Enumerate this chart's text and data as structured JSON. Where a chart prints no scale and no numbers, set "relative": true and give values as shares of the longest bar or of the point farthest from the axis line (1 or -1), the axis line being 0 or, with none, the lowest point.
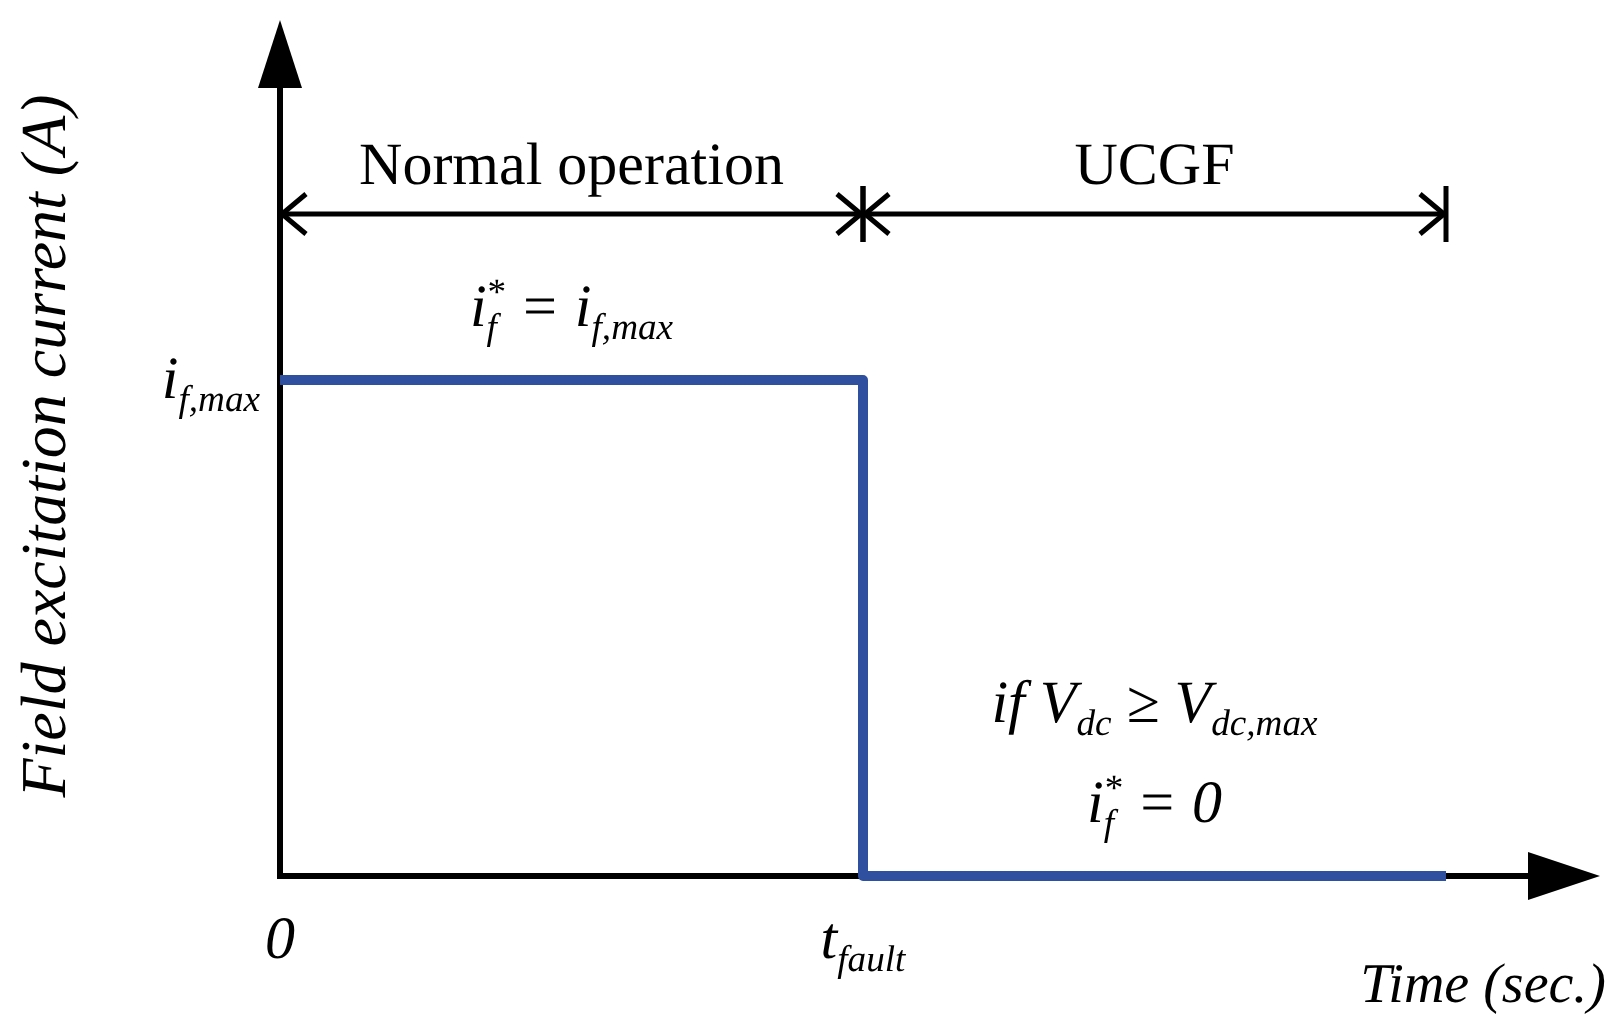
{
  "chart_data": {
    "type": "step",
    "xlabel": "Time (sec.)",
    "ylabel": "Field excitation current (A)",
    "categories": [
      "0",
      "t$_{fault}$",
      null
    ],
    "series": [
      {
        "color": "#2f4f9f",
        "values": [
          1,
          0,
          0
        ]
      }
    ],
    "relative": true,
    "marker": "none",
    "annotations": [
      "Normal operation",
      "UCGF",
      {
        "text": "i$_{f}$$^{*}$ = i$_{f,max}$",
        "y": 1
      },
      {
        "text": "i$_{f,max}$",
        "x": "0",
        "y": 1
      },
      {
        "text": "if V$_{dc}$ ≥ V$_{dc,max}$",
        "y": 0
      },
      {
        "text": "i$_{f}$$^{*}$ = 0",
        "y": 0
      }
    ]
  }
}
